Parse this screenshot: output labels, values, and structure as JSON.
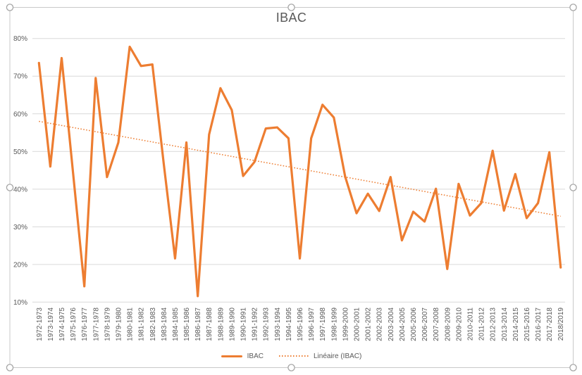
{
  "chart_data": {
    "type": "line",
    "title": "IBAC",
    "categories": [
      "1972-1973",
      "1973-1974",
      "1974-1975",
      "1975-1976",
      "1976-1977",
      "1977-1978",
      "1978-1979",
      "1979-1980",
      "1980-1981",
      "1981-1982",
      "1982-1983",
      "1983-1984",
      "1984-1985",
      "1985-1986",
      "1986-1987",
      "1987-1988",
      "1988-1989",
      "1989-1990",
      "1990-1991",
      "1991-1992",
      "1992-1993",
      "1993-1994",
      "1994-1995",
      "1995-1996",
      "1996-1997",
      "1997-1998",
      "1998-1999",
      "1999-2000",
      "2000-2001",
      "2001-2002",
      "2002-2003",
      "2003-2004",
      "2004-2005",
      "2005-2006",
      "2006-2007",
      "2007-2008",
      "2008-2009",
      "2009-2010",
      "2010-2011",
      "2011-2012",
      "2012-2013",
      "2013-2014",
      "2014-2015",
      "2015-2016",
      "2016-2017",
      "2017-2018",
      "2018/2019"
    ],
    "series": [
      {
        "name": "IBAC",
        "color": "#ED7D31",
        "values": [
          73.5,
          46.0,
          74.8,
          44.5,
          14.2,
          69.5,
          43.2,
          52.4,
          77.8,
          72.7,
          73.1,
          46.8,
          21.6,
          52.4,
          11.6,
          54.5,
          66.8,
          61.0,
          43.5,
          47.2,
          56.1,
          56.4,
          53.5,
          21.6,
          53.5,
          62.4,
          59.0,
          43.3,
          33.6,
          38.8,
          34.2,
          43.2,
          26.4,
          34.0,
          31.4,
          40.1,
          18.8,
          41.4,
          33.0,
          36.3,
          50.2,
          34.3,
          44.0,
          32.3,
          36.3,
          49.8,
          19.2
        ]
      }
    ],
    "trendline": {
      "name": "Linéaire (IBAC)",
      "color": "#ED7D31",
      "style": "dotted",
      "start_value": 58.0,
      "end_value": 32.8
    },
    "y_axis": {
      "tick_labels": [
        "80%",
        "70%",
        "60%",
        "50%",
        "40%",
        "30%",
        "20%",
        "10%"
      ],
      "tick_values": [
        80,
        70,
        60,
        50,
        40,
        30,
        20,
        10
      ],
      "min": 10,
      "max": 80
    },
    "x_axis": {
      "label_rotation": "vertical, reads bottom-to-top"
    },
    "grid": true,
    "legend": {
      "position": "bottom",
      "items": [
        {
          "label": "IBAC",
          "style": "solid"
        },
        {
          "label": "Linéaire (IBAC)",
          "style": "dotted"
        }
      ]
    },
    "colors": {
      "series": "#ED7D31",
      "gridline": "#D9D9D9",
      "text": "#595959",
      "border": "#C9C9C9",
      "handle_stroke": "#A6A6A6",
      "handle_fill": "#FFFFFF"
    }
  }
}
